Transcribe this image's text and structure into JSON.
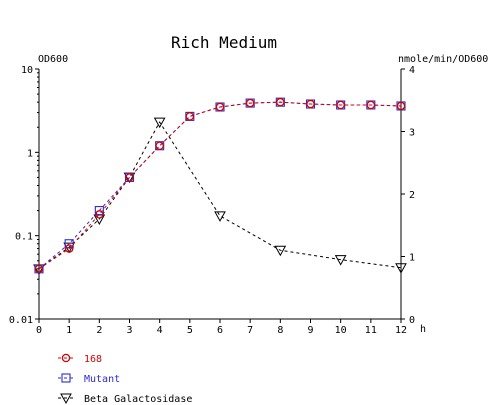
{
  "chart_data": {
    "type": "line",
    "title": "Rich Medium",
    "ylabel_left": "OD600",
    "ylabel_right": "nmole/min/OD600",
    "xlabel": "h",
    "x_ticks": [
      "0",
      "1",
      "2",
      "3",
      "4",
      "5",
      "6",
      "7",
      "8",
      "9",
      "10",
      "11",
      "12"
    ],
    "y_left_ticks": [
      "10",
      "1",
      "0.1",
      "0.01"
    ],
    "y_right_ticks": [
      "4",
      "3",
      "2",
      "1",
      "0"
    ],
    "xlim": [
      0,
      12
    ],
    "ylim_left": [
      0.01,
      10
    ],
    "y_left_scale": "log",
    "ylim_right": [
      0,
      4
    ],
    "y_right_scale": "linear",
    "legend_placement": "bottom-left",
    "series": [
      {
        "name": "168",
        "axis": "left",
        "color": "#d40000",
        "marker": "circle",
        "x": [
          0,
          1,
          2,
          3,
          4,
          5,
          6,
          7,
          8,
          9,
          10,
          11,
          12
        ],
        "values": [
          0.04,
          0.07,
          0.18,
          0.5,
          1.2,
          2.7,
          3.5,
          3.9,
          4.0,
          3.8,
          3.7,
          3.7,
          3.6
        ]
      },
      {
        "name": "Mutant",
        "axis": "left",
        "color": "#2a2ad4",
        "marker": "square",
        "x": [
          0,
          1,
          2,
          3,
          4,
          5,
          6,
          7,
          8,
          9,
          10,
          11,
          12
        ],
        "values": [
          0.04,
          0.08,
          0.2,
          0.5,
          1.2,
          2.7,
          3.5,
          3.9,
          4.0,
          3.8,
          3.7,
          3.7,
          3.6
        ]
      },
      {
        "name": "Beta Galactosidase",
        "axis": "right",
        "color": "#000000",
        "marker": "triangle-down",
        "x": [
          0,
          1,
          2,
          3,
          4,
          6,
          8,
          10,
          12
        ],
        "values": [
          0.8,
          1.15,
          1.6,
          2.27,
          3.15,
          1.65,
          1.1,
          0.95,
          0.82
        ]
      }
    ]
  }
}
